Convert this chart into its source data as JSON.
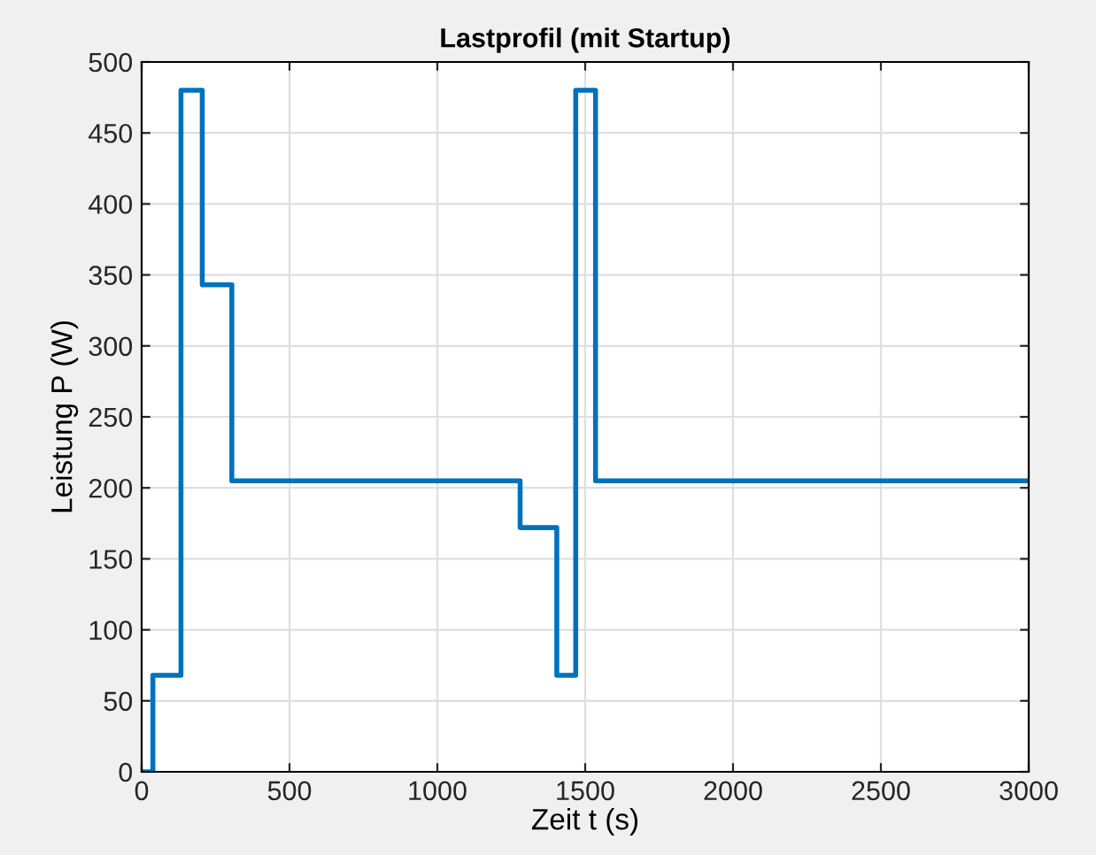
{
  "chart_data": {
    "type": "step",
    "title": "Lastprofil (mit Startup)",
    "xlabel": "Zeit t (s)",
    "ylabel": "Leistung P (W)",
    "x": [
      0,
      38,
      133,
      205,
      305,
      1280,
      1404,
      1468,
      1535,
      3000
    ],
    "series": [
      {
        "color": "#0072bd",
        "values": [
          0,
          68,
          480,
          343,
          205,
          172,
          68,
          480,
          205,
          205
        ]
      }
    ],
    "xlim": [
      0,
      3000
    ],
    "ylim": [
      0,
      500
    ],
    "xticks": [
      0,
      500,
      1000,
      1500,
      2000,
      2500,
      3000
    ],
    "yticks": [
      0,
      50,
      100,
      150,
      200,
      250,
      300,
      350,
      400,
      450,
      500
    ],
    "grid": true,
    "legend": false
  }
}
